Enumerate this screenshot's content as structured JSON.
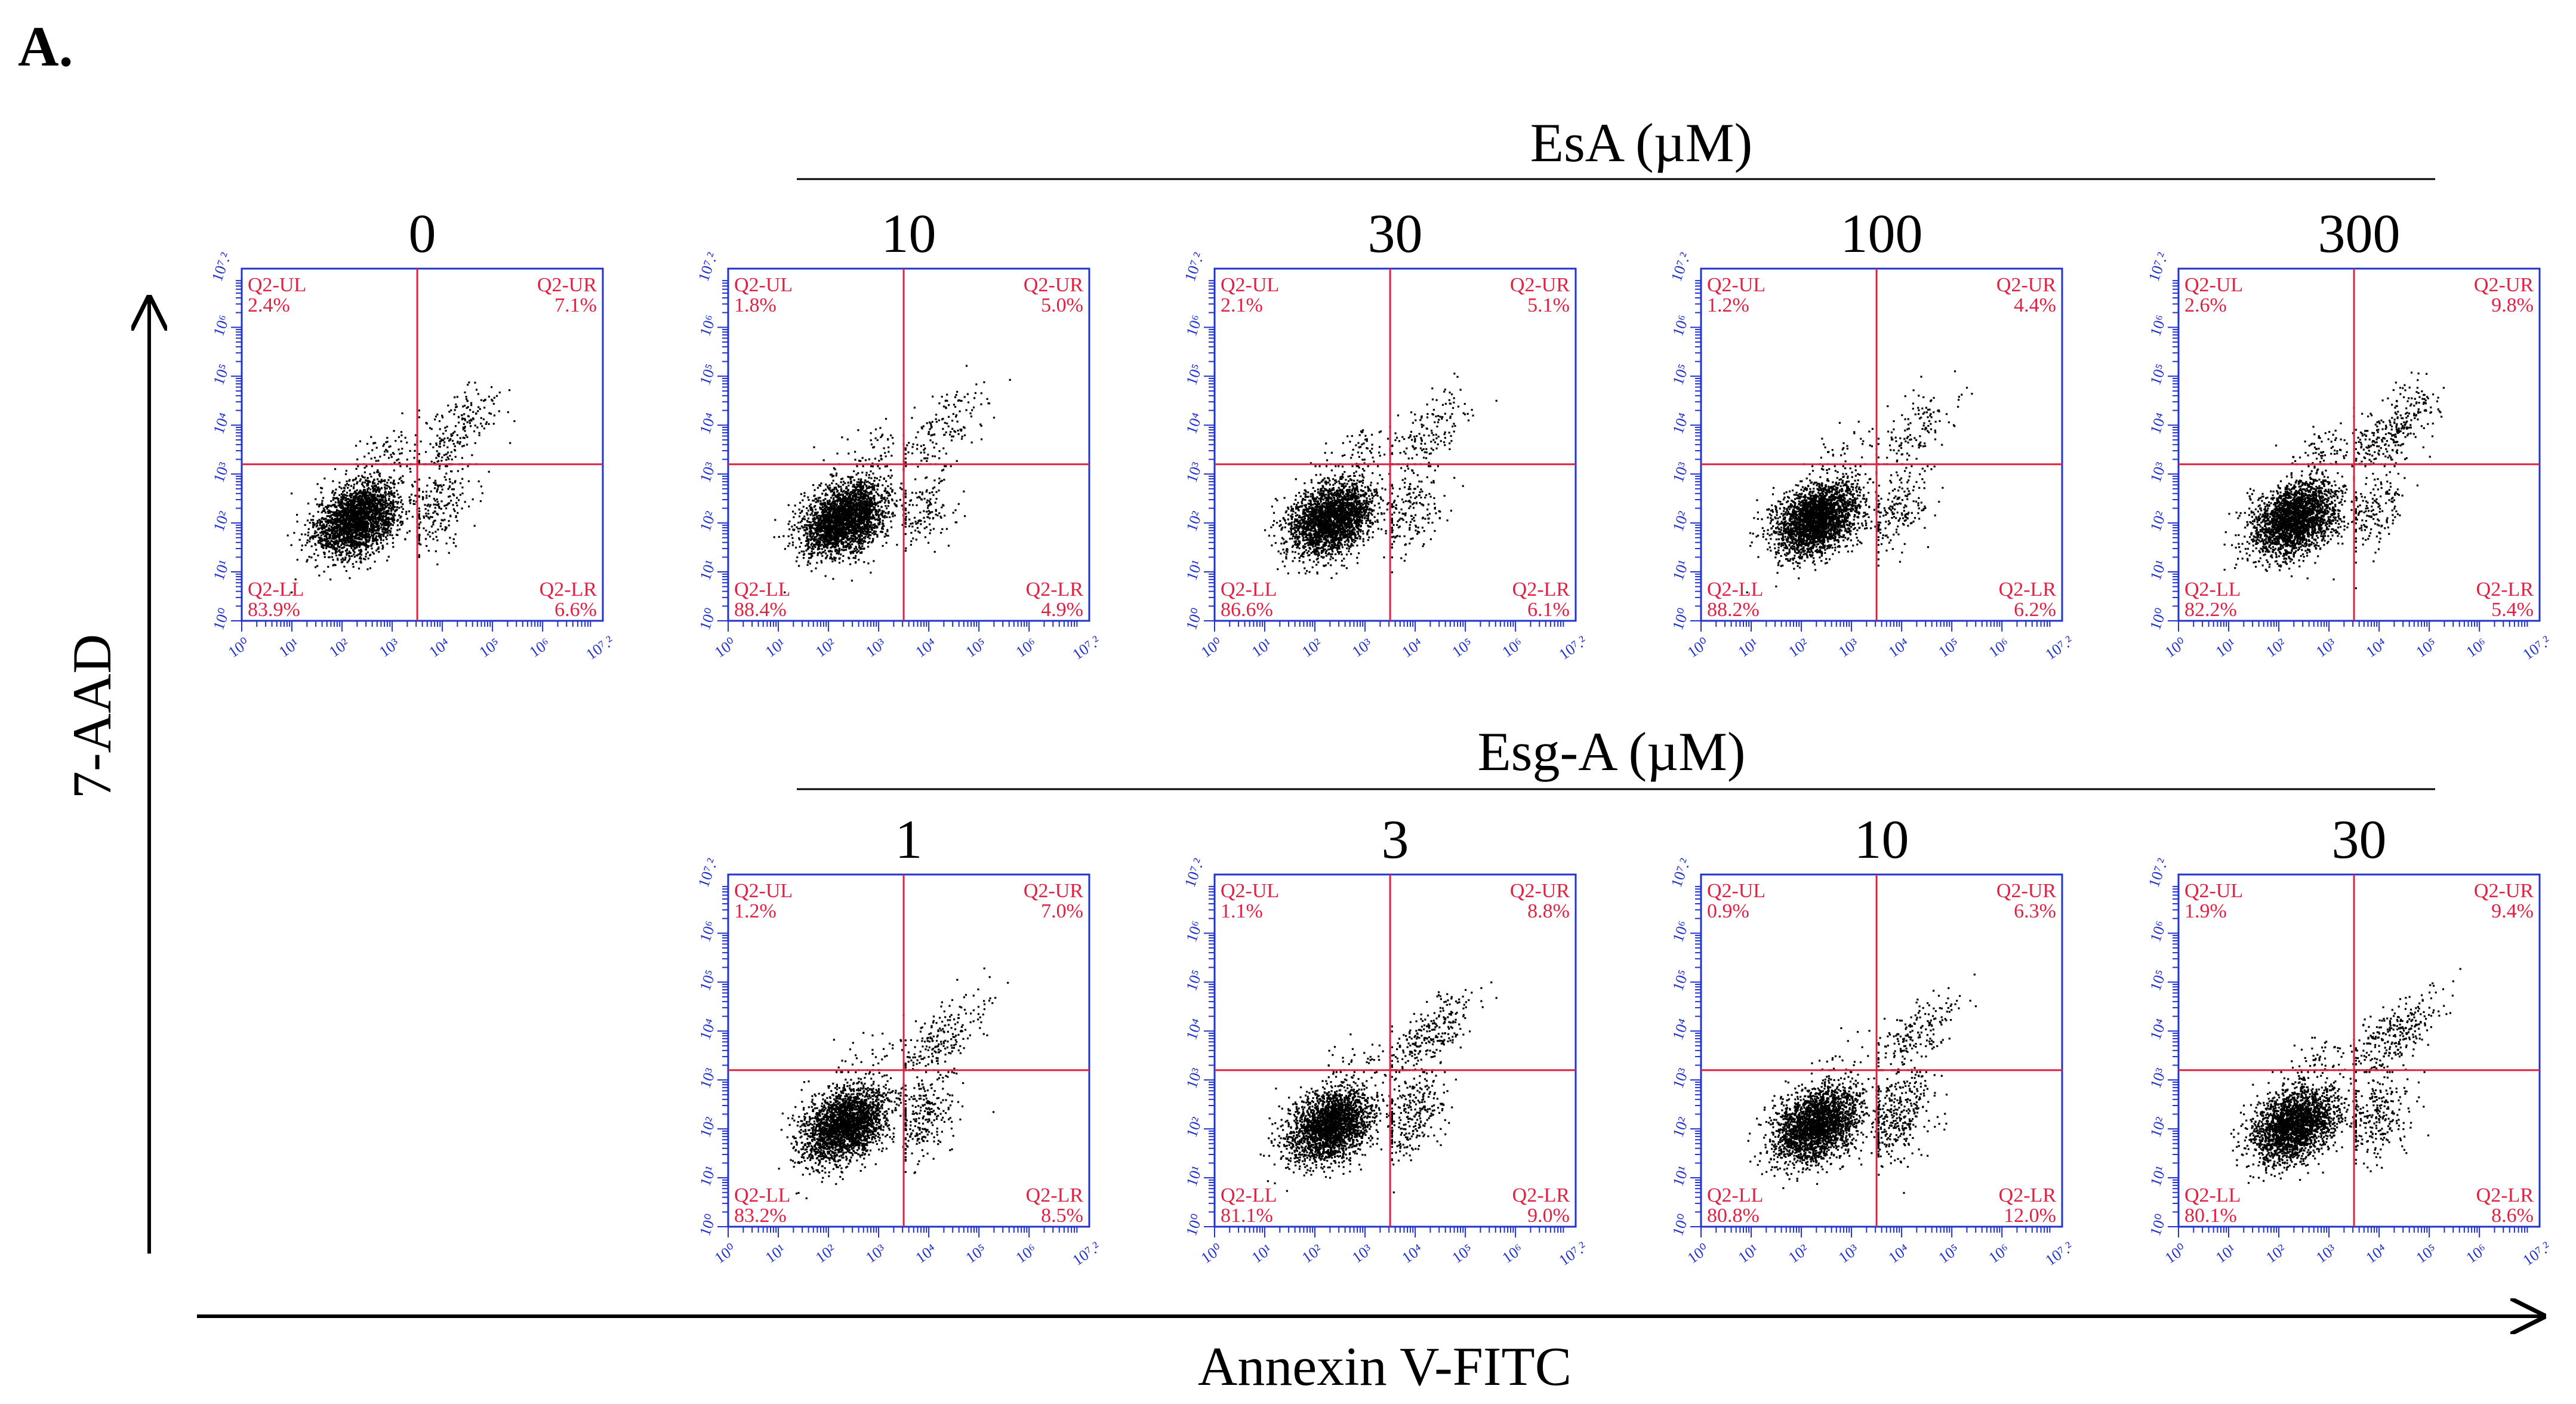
{
  "panel_label": "A.",
  "groups": [
    {
      "title": "EsA (µM)"
    },
    {
      "title": "Esg-A (µM)"
    }
  ],
  "axes": {
    "x_label": "Annexin V-FITC",
    "y_label": "7-AAD",
    "tick_labels": [
      "10⁰",
      "10¹",
      "10²",
      "10³",
      "10⁴",
      "10⁵",
      "10⁶",
      "10⁷.²"
    ],
    "quadrant_names": [
      "Q2-UL",
      "Q2-UR",
      "Q2-LL",
      "Q2-LR"
    ]
  },
  "colors": {
    "frame": "#2233cc",
    "gate": "#dd2244",
    "quadrant_text": "#dd2244",
    "dots": "#000000"
  },
  "chart_data": {
    "type": "scatter",
    "plot_kind": "flow cytometry quadrant dot plots",
    "xlabel": "Annexin V-FITC",
    "ylabel": "7-AAD",
    "xlim": [
      0,
      7.2
    ],
    "ylim": [
      0,
      7.2
    ],
    "scale": "log10",
    "plots": [
      {
        "row": 0,
        "col": 0,
        "dose": "0",
        "UL": "2.4%",
        "UR": "7.1%",
        "LL": "83.9%",
        "LR": "6.6%",
        "gate_x": 3.5,
        "gate_y": 3.2
      },
      {
        "row": 0,
        "col": 1,
        "dose": "10",
        "UL": "1.8%",
        "UR": "5.0%",
        "LL": "88.4%",
        "LR": "4.9%",
        "gate_x": 3.5,
        "gate_y": 3.2
      },
      {
        "row": 0,
        "col": 2,
        "dose": "30",
        "UL": "2.1%",
        "UR": "5.1%",
        "LL": "86.6%",
        "LR": "6.1%",
        "gate_x": 3.5,
        "gate_y": 3.2
      },
      {
        "row": 0,
        "col": 3,
        "dose": "100",
        "UL": "1.2%",
        "UR": "4.4%",
        "LL": "88.2%",
        "LR": "6.2%",
        "gate_x": 3.5,
        "gate_y": 3.2
      },
      {
        "row": 0,
        "col": 4,
        "dose": "300",
        "UL": "2.6%",
        "UR": "9.8%",
        "LL": "82.2%",
        "LR": "5.4%",
        "gate_x": 3.5,
        "gate_y": 3.2
      },
      {
        "row": 1,
        "col": 1,
        "dose": "1",
        "UL": "1.2%",
        "UR": "7.0%",
        "LL": "83.2%",
        "LR": "8.5%",
        "gate_x": 3.5,
        "gate_y": 3.2
      },
      {
        "row": 1,
        "col": 2,
        "dose": "3",
        "UL": "1.1%",
        "UR": "8.8%",
        "LL": "81.1%",
        "LR": "9.0%",
        "gate_x": 3.5,
        "gate_y": 3.2
      },
      {
        "row": 1,
        "col": 3,
        "dose": "10",
        "UL": "0.9%",
        "UR": "6.3%",
        "LL": "80.8%",
        "LR": "12.0%",
        "gate_x": 3.5,
        "gate_y": 3.2
      },
      {
        "row": 1,
        "col": 4,
        "dose": "30",
        "UL": "1.9%",
        "UR": "9.4%",
        "LL": "80.1%",
        "LR": "8.6%",
        "gate_x": 3.5,
        "gate_y": 3.2
      }
    ]
  }
}
